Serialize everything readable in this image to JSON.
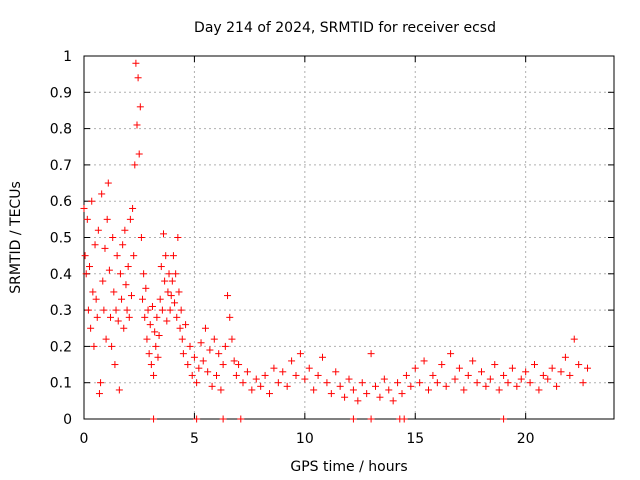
{
  "chart_data": {
    "type": "scatter",
    "title": "Day 214 of 2024, SRMTID for receiver ecsd",
    "xlabel": "GPS time / hours",
    "ylabel": "SRMTID / TECUs",
    "xlim": [
      0,
      24
    ],
    "ylim": [
      0,
      1
    ],
    "xticks": [
      0,
      5,
      10,
      15,
      20
    ],
    "xtick_labels": [
      "0",
      "5",
      "10",
      "15",
      "20"
    ],
    "yticks": [
      0,
      0.1,
      0.2,
      0.3,
      0.4,
      0.5,
      0.6,
      0.7,
      0.8,
      0.9,
      1
    ],
    "ytick_labels": [
      "0",
      "0.1",
      "0.2",
      "0.3",
      "0.4",
      "0.5",
      "0.6",
      "0.7",
      "0.8",
      "0.9",
      "1"
    ],
    "grid": true,
    "marker": "+",
    "color": "#ff0000",
    "series": [
      {
        "name": "SRMTID",
        "points": [
          [
            0.0,
            0.58
          ],
          [
            0.05,
            0.45
          ],
          [
            0.1,
            0.4
          ],
          [
            0.15,
            0.55
          ],
          [
            0.2,
            0.3
          ],
          [
            0.25,
            0.42
          ],
          [
            0.3,
            0.25
          ],
          [
            0.35,
            0.6
          ],
          [
            0.4,
            0.35
          ],
          [
            0.45,
            0.2
          ],
          [
            0.5,
            0.48
          ],
          [
            0.55,
            0.33
          ],
          [
            0.6,
            0.28
          ],
          [
            0.65,
            0.52
          ],
          [
            0.7,
            0.07
          ],
          [
            0.75,
            0.1
          ],
          [
            0.8,
            0.62
          ],
          [
            0.85,
            0.38
          ],
          [
            0.9,
            0.3
          ],
          [
            0.95,
            0.47
          ],
          [
            1.0,
            0.22
          ],
          [
            1.05,
            0.55
          ],
          [
            1.1,
            0.65
          ],
          [
            1.15,
            0.41
          ],
          [
            1.2,
            0.28
          ],
          [
            1.25,
            0.2
          ],
          [
            1.3,
            0.5
          ],
          [
            1.35,
            0.35
          ],
          [
            1.4,
            0.15
          ],
          [
            1.45,
            0.3
          ],
          [
            1.5,
            0.45
          ],
          [
            1.55,
            0.27
          ],
          [
            1.6,
            0.08
          ],
          [
            1.65,
            0.4
          ],
          [
            1.7,
            0.33
          ],
          [
            1.75,
            0.48
          ],
          [
            1.8,
            0.25
          ],
          [
            1.85,
            0.52
          ],
          [
            1.9,
            0.37
          ],
          [
            1.95,
            0.3
          ],
          [
            2.0,
            0.42
          ],
          [
            2.05,
            0.28
          ],
          [
            2.1,
            0.55
          ],
          [
            2.15,
            0.34
          ],
          [
            2.2,
            0.58
          ],
          [
            2.25,
            0.45
          ],
          [
            2.3,
            0.7
          ],
          [
            2.35,
            0.98
          ],
          [
            2.4,
            0.81
          ],
          [
            2.45,
            0.94
          ],
          [
            2.5,
            0.73
          ],
          [
            2.55,
            0.86
          ],
          [
            2.6,
            0.5
          ],
          [
            2.65,
            0.33
          ],
          [
            2.7,
            0.4
          ],
          [
            2.75,
            0.28
          ],
          [
            2.8,
            0.36
          ],
          [
            2.85,
            0.22
          ],
          [
            2.9,
            0.3
          ],
          [
            2.95,
            0.18
          ],
          [
            3.0,
            0.26
          ],
          [
            3.05,
            0.15
          ],
          [
            3.1,
            0.31
          ],
          [
            3.15,
            0.12
          ],
          [
            3.2,
            0.24
          ],
          [
            3.25,
            0.2
          ],
          [
            3.3,
            0.28
          ],
          [
            3.35,
            0.17
          ],
          [
            3.4,
            0.23
          ],
          [
            3.45,
            0.33
          ],
          [
            3.5,
            0.42
          ],
          [
            3.55,
            0.3
          ],
          [
            3.6,
            0.51
          ],
          [
            3.65,
            0.38
          ],
          [
            3.7,
            0.45
          ],
          [
            3.75,
            0.27
          ],
          [
            3.8,
            0.35
          ],
          [
            3.85,
            0.4
          ],
          [
            3.9,
            0.3
          ],
          [
            3.95,
            0.34
          ],
          [
            4.0,
            0.38
          ],
          [
            4.05,
            0.45
          ],
          [
            4.1,
            0.32
          ],
          [
            4.15,
            0.4
          ],
          [
            4.2,
            0.28
          ],
          [
            4.25,
            0.5
          ],
          [
            4.3,
            0.35
          ],
          [
            4.35,
            0.25
          ],
          [
            4.4,
            0.3
          ],
          [
            4.45,
            0.22
          ],
          [
            4.5,
            0.18
          ],
          [
            4.6,
            0.26
          ],
          [
            4.7,
            0.15
          ],
          [
            4.8,
            0.2
          ],
          [
            4.9,
            0.12
          ],
          [
            5.0,
            0.17
          ],
          [
            5.1,
            0.1
          ],
          [
            5.2,
            0.14
          ],
          [
            5.3,
            0.21
          ],
          [
            5.4,
            0.16
          ],
          [
            5.5,
            0.25
          ],
          [
            5.6,
            0.13
          ],
          [
            5.7,
            0.19
          ],
          [
            5.8,
            0.09
          ],
          [
            5.9,
            0.22
          ],
          [
            6.0,
            0.12
          ],
          [
            6.1,
            0.18
          ],
          [
            6.2,
            0.08
          ],
          [
            6.3,
            0.15
          ],
          [
            6.4,
            0.2
          ],
          [
            6.5,
            0.34
          ],
          [
            6.6,
            0.28
          ],
          [
            6.7,
            0.22
          ],
          [
            6.8,
            0.16
          ],
          [
            6.9,
            0.12
          ],
          [
            7.0,
            0.15
          ],
          [
            7.2,
            0.1
          ],
          [
            7.4,
            0.13
          ],
          [
            7.6,
            0.08
          ],
          [
            7.8,
            0.11
          ],
          [
            8.0,
            0.09
          ],
          [
            8.2,
            0.12
          ],
          [
            8.4,
            0.07
          ],
          [
            8.6,
            0.14
          ],
          [
            8.8,
            0.1
          ],
          [
            9.0,
            0.13
          ],
          [
            9.2,
            0.09
          ],
          [
            9.4,
            0.16
          ],
          [
            9.6,
            0.12
          ],
          [
            9.8,
            0.18
          ],
          [
            10.0,
            0.11
          ],
          [
            10.2,
            0.14
          ],
          [
            10.4,
            0.08
          ],
          [
            10.6,
            0.12
          ],
          [
            10.8,
            0.17
          ],
          [
            11.0,
            0.1
          ],
          [
            11.2,
            0.07
          ],
          [
            11.4,
            0.13
          ],
          [
            11.6,
            0.09
          ],
          [
            11.8,
            0.06
          ],
          [
            12.0,
            0.11
          ],
          [
            12.2,
            0.08
          ],
          [
            12.4,
            0.05
          ],
          [
            12.6,
            0.1
          ],
          [
            12.8,
            0.07
          ],
          [
            13.0,
            0.18
          ],
          [
            13.2,
            0.09
          ],
          [
            13.4,
            0.06
          ],
          [
            13.6,
            0.11
          ],
          [
            13.8,
            0.08
          ],
          [
            14.0,
            0.05
          ],
          [
            14.2,
            0.1
          ],
          [
            14.4,
            0.07
          ],
          [
            14.6,
            0.12
          ],
          [
            14.8,
            0.09
          ],
          [
            15.0,
            0.14
          ],
          [
            15.2,
            0.1
          ],
          [
            15.4,
            0.16
          ],
          [
            15.6,
            0.08
          ],
          [
            15.8,
            0.12
          ],
          [
            16.0,
            0.1
          ],
          [
            16.2,
            0.15
          ],
          [
            16.4,
            0.09
          ],
          [
            16.6,
            0.18
          ],
          [
            16.8,
            0.11
          ],
          [
            17.0,
            0.14
          ],
          [
            17.2,
            0.08
          ],
          [
            17.4,
            0.12
          ],
          [
            17.6,
            0.16
          ],
          [
            17.8,
            0.1
          ],
          [
            18.0,
            0.13
          ],
          [
            18.2,
            0.09
          ],
          [
            18.4,
            0.11
          ],
          [
            18.6,
            0.15
          ],
          [
            18.8,
            0.08
          ],
          [
            19.0,
            0.12
          ],
          [
            19.2,
            0.1
          ],
          [
            19.4,
            0.14
          ],
          [
            19.6,
            0.09
          ],
          [
            19.8,
            0.11
          ],
          [
            20.0,
            0.13
          ],
          [
            20.2,
            0.1
          ],
          [
            20.4,
            0.15
          ],
          [
            20.6,
            0.08
          ],
          [
            20.8,
            0.12
          ],
          [
            21.0,
            0.11
          ],
          [
            21.2,
            0.14
          ],
          [
            21.4,
            0.09
          ],
          [
            21.6,
            0.13
          ],
          [
            21.8,
            0.17
          ],
          [
            22.0,
            0.12
          ],
          [
            22.2,
            0.22
          ],
          [
            22.4,
            0.15
          ],
          [
            22.6,
            0.1
          ],
          [
            22.8,
            0.14
          ],
          [
            3.15,
            0.0
          ],
          [
            5.1,
            0.0
          ],
          [
            6.3,
            0.0
          ],
          [
            7.1,
            0.0
          ],
          [
            12.2,
            0.0
          ],
          [
            13.0,
            0.0
          ],
          [
            14.3,
            0.0
          ],
          [
            14.5,
            0.0
          ],
          [
            19.0,
            0.0
          ]
        ]
      }
    ]
  }
}
